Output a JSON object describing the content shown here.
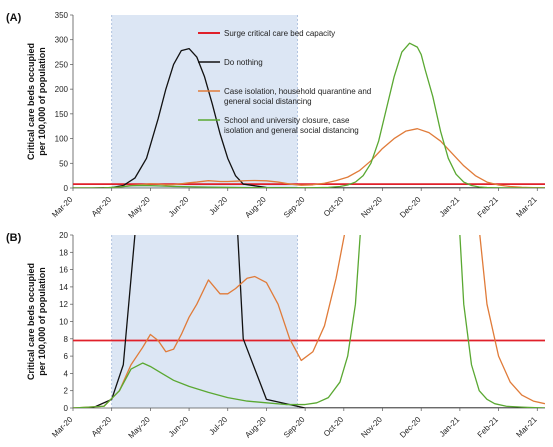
{
  "chart_data": [
    {
      "type": "line",
      "panel_label": "(A)",
      "ylabel": "Critical care beds occupied per 100,000 of population",
      "ylabel_lines": [
        "Critical care beds occupied",
        "per 100,000 of population"
      ],
      "ylim": [
        0,
        350
      ],
      "yticks": [
        0,
        50,
        100,
        150,
        200,
        250,
        300,
        350
      ],
      "xlim": [
        0,
        12.2
      ],
      "xtick_labels": [
        "Mar-20",
        "Apr-20",
        "May-20",
        "Jun-20",
        "Jul-20",
        "Aug-20",
        "Sep-20",
        "Oct-20",
        "Nov-20",
        "Dec-20",
        "Jan-21",
        "Feb-21",
        "Mar-21"
      ],
      "shaded_region": [
        1.0,
        5.8
      ],
      "grid": false,
      "legend": [
        {
          "name": "Surge critical care bed capacity",
          "color": "#e0202a"
        },
        {
          "name": "Do nothing",
          "color": "#111111"
        },
        {
          "name": "Case isolation, household quarantine and general social distancing",
          "color": "#e07b39",
          "lines": [
            "Case isolation, household quarantine and",
            "general social distancing"
          ]
        },
        {
          "name": "School and university closure, case isolation and general social distancing",
          "color": "#5aa832",
          "lines": [
            "School and university closure, case",
            "isolation and general social distancing"
          ]
        }
      ],
      "series": [
        {
          "name": "Surge critical care bed capacity",
          "color": "#e0202a",
          "x": [
            0,
            12.2
          ],
          "y": [
            7.8,
            7.8
          ]
        },
        {
          "name": "Do nothing",
          "color": "#111111",
          "x": [
            0,
            0.5,
            1.0,
            1.3,
            1.6,
            1.9,
            2.2,
            2.4,
            2.6,
            2.8,
            3.0,
            3.2,
            3.4,
            3.6,
            3.8,
            4.0,
            4.2,
            4.4,
            5.0,
            6.0,
            8.0,
            12.2
          ],
          "y": [
            0,
            0,
            1,
            5,
            20,
            60,
            140,
            200,
            250,
            278,
            282,
            265,
            225,
            170,
            110,
            60,
            25,
            8,
            1,
            0,
            0,
            0
          ]
        },
        {
          "name": "Case isolation, household quarantine and general social distancing",
          "color": "#e07b39",
          "x": [
            0,
            0.8,
            1.2,
            1.5,
            1.8,
            2.0,
            2.2,
            2.4,
            2.6,
            2.8,
            3.0,
            3.2,
            3.5,
            3.8,
            4.0,
            4.2,
            4.5,
            4.7,
            5.0,
            5.3,
            5.6,
            5.9,
            6.2,
            6.5,
            6.8,
            7.1,
            7.4,
            7.7,
            8.0,
            8.3,
            8.6,
            8.9,
            9.2,
            9.5,
            9.8,
            10.1,
            10.4,
            10.7,
            11.0,
            11.3,
            11.6,
            11.9,
            12.2
          ],
          "y": [
            0,
            0.2,
            2,
            5,
            7,
            8.5,
            7.8,
            6.5,
            6.8,
            8.5,
            10.5,
            12,
            14.8,
            13.2,
            13.2,
            13.8,
            15,
            15.2,
            14.5,
            12,
            8,
            5.5,
            6.5,
            9.5,
            15,
            22,
            35,
            55,
            80,
            100,
            115,
            120,
            112,
            95,
            70,
            45,
            25,
            12,
            6,
            3,
            1.5,
            0.8,
            0.5
          ]
        },
        {
          "name": "School and university closure, case isolation and general social distancing",
          "color": "#5aa832",
          "x": [
            0,
            0.8,
            1.2,
            1.5,
            1.8,
            2.0,
            2.3,
            2.6,
            3.0,
            3.5,
            4.0,
            4.5,
            5.0,
            5.5,
            6.0,
            6.3,
            6.6,
            6.9,
            7.1,
            7.3,
            7.5,
            7.7,
            7.9,
            8.1,
            8.3,
            8.5,
            8.7,
            8.9,
            9.0,
            9.1,
            9.3,
            9.5,
            9.7,
            9.9,
            10.1,
            10.3,
            10.5,
            10.7,
            10.9,
            11.2,
            11.6,
            12.2
          ],
          "y": [
            0,
            0.2,
            2,
            4.5,
            5.2,
            4.8,
            4.0,
            3.2,
            2.5,
            1.8,
            1.2,
            0.8,
            0.6,
            0.4,
            0.4,
            0.6,
            1.2,
            3,
            6,
            12,
            25,
            50,
            95,
            160,
            225,
            275,
            293,
            285,
            270,
            240,
            185,
            115,
            60,
            28,
            12,
            5,
            2,
            1,
            0.5,
            0.2,
            0.1,
            0
          ]
        }
      ]
    },
    {
      "type": "line",
      "panel_label": "(B)",
      "ylabel": "Critical care beds occupied per 100,000 of population",
      "ylabel_lines": [
        "Critical care beds occupied",
        "per 100,000 of population"
      ],
      "ylim": [
        0,
        20
      ],
      "yticks": [
        0,
        2,
        4,
        6,
        8,
        10,
        12,
        14,
        16,
        18,
        20
      ],
      "xlim": [
        0,
        12.2
      ],
      "xtick_labels": [
        "Mar-20",
        "Apr-20",
        "May-20",
        "Jun-20",
        "Jul-20",
        "Aug-20",
        "Sep-20",
        "Oct-20",
        "Nov-20",
        "Dec-20",
        "Jan-21",
        "Feb-21",
        "Mar-21"
      ],
      "shaded_region": [
        1.0,
        5.8
      ],
      "grid": false,
      "series_ref": "same as panel (A), clipped to ylim"
    }
  ]
}
